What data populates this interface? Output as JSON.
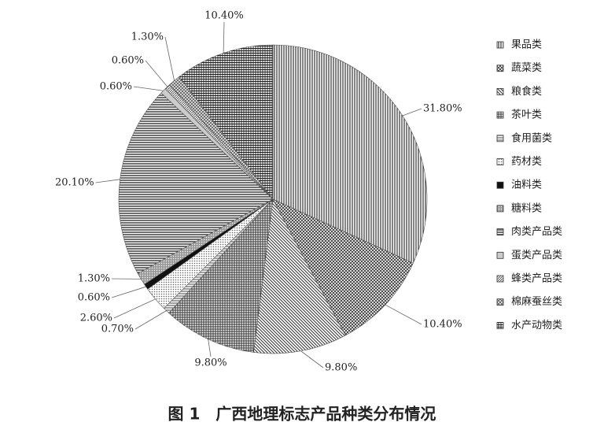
{
  "chart_data": {
    "type": "pie",
    "caption": "图 1　广西地理标志产品种类分布情况",
    "categories": [
      "果品类",
      "蔬菜类",
      "粮食类",
      "茶叶类",
      "食用菌类",
      "药材类",
      "油料类",
      "糖料类",
      "肉类产品类",
      "蛋类产品类",
      "蜂类产品类",
      "棉麻蚕丝类",
      "水产动物类"
    ],
    "values": [
      31.8,
      10.4,
      9.8,
      9.8,
      0.7,
      2.6,
      0.6,
      1.3,
      20.1,
      0.6,
      0.6,
      1.3,
      10.4
    ],
    "value_labels": [
      "31.80%",
      "10.40%",
      "9.80%",
      "9.80%",
      "0.70%",
      "2.60%",
      "0.60%",
      "1.30%",
      "20.10%",
      "0.60%",
      "0.60%",
      "1.30%",
      "10.40%"
    ],
    "legend": "right"
  }
}
